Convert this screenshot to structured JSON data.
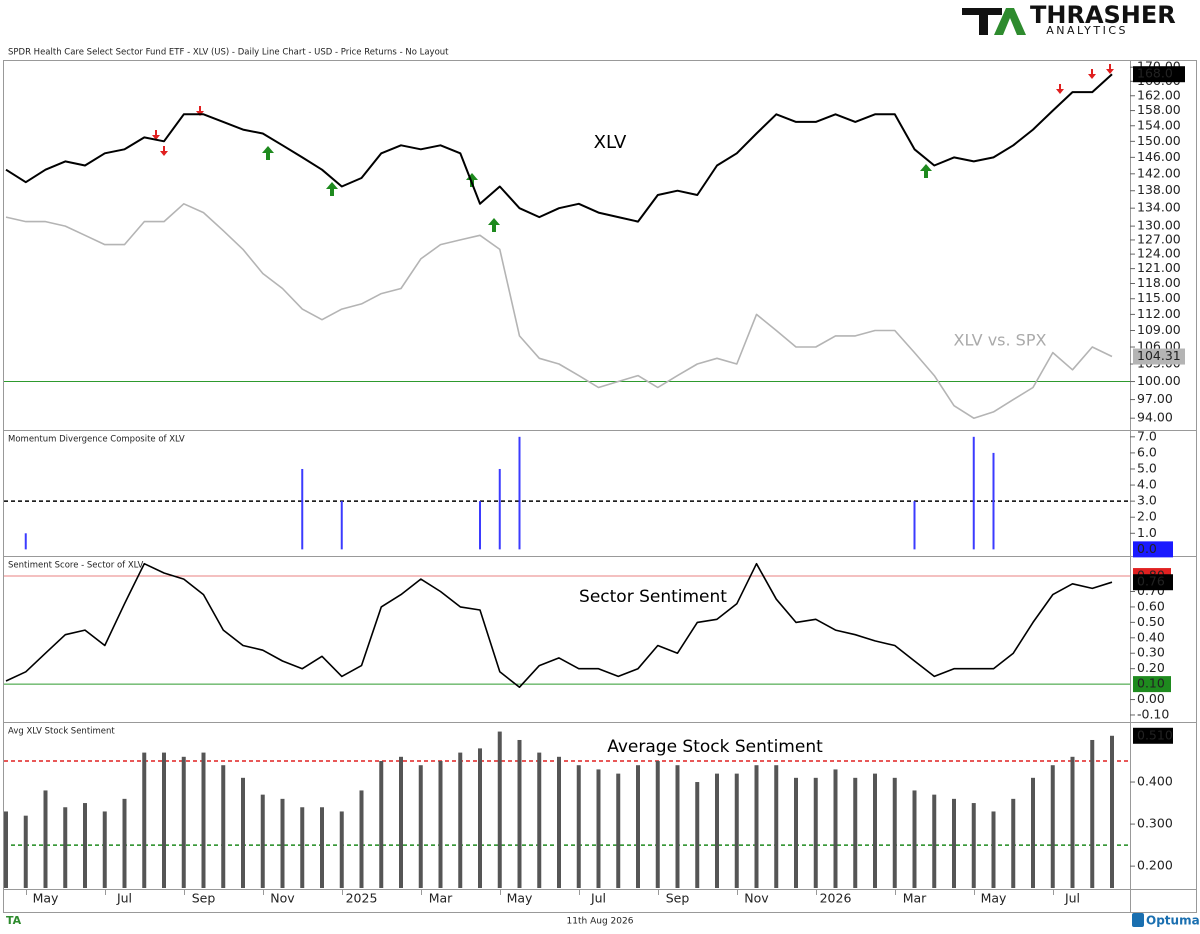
{
  "logo": {
    "name": "THRASHER",
    "tagline": "ANALYTICS"
  },
  "header": "SPDR Health Care Select Sector Fund ETF - XLV (US) - Daily Line Chart - USD - Price Returns - No Layout",
  "footer": {
    "date": "11th Aug 2026",
    "brand": "Optuma"
  },
  "x_axis": {
    "categories": [
      null,
      null,
      "May",
      null,
      null,
      null,
      "Jul",
      null,
      null,
      null,
      "Sep",
      null,
      null,
      null,
      "Nov",
      null,
      null,
      null,
      "2025",
      null,
      null,
      null,
      "Mar",
      null,
      null,
      null,
      "May",
      null,
      null,
      null,
      "Jul",
      null,
      null,
      null,
      "Sep",
      null,
      null,
      null,
      "Nov",
      null,
      null,
      null,
      "2026",
      null,
      null,
      null,
      "Mar",
      null,
      null,
      null,
      "May",
      null,
      null,
      null,
      "Jul",
      null,
      null
    ]
  },
  "chart_data": [
    {
      "type": "line",
      "log": true,
      "ylim": [
        92.3,
        171.5
      ],
      "yticks": [
        {
          "value": 94,
          "label": "94.00"
        },
        {
          "value": 97,
          "label": "97.00"
        },
        {
          "value": 100,
          "label": "100.00"
        },
        {
          "value": 103,
          "label": "103.00"
        },
        {
          "value": 106,
          "label": "106.00"
        },
        {
          "value": 109,
          "label": "109.00"
        },
        {
          "value": 112,
          "label": "112.00"
        },
        {
          "value": 115,
          "label": "115.00"
        },
        {
          "value": 118,
          "label": "118.00"
        },
        {
          "value": 121,
          "label": "121.00"
        },
        {
          "value": 124,
          "label": "124.00"
        },
        {
          "value": 127,
          "label": "127.00"
        },
        {
          "value": 130,
          "label": "130.00"
        },
        {
          "value": 134,
          "label": "134.00"
        },
        {
          "value": 138,
          "label": "138.00"
        },
        {
          "value": 142,
          "label": "142.00"
        },
        {
          "value": 146,
          "label": "146.00"
        },
        {
          "value": 150,
          "label": "150.00"
        },
        {
          "value": 154,
          "label": "154.00"
        },
        {
          "value": 158,
          "label": "158.00"
        },
        {
          "value": 162,
          "label": "162.00"
        },
        {
          "value": 166,
          "label": "166.00"
        },
        {
          "value": 170,
          "label": "170.00"
        }
      ],
      "hlines": [
        {
          "value": 100,
          "color": "#2e9a2e"
        }
      ],
      "series": [
        {
          "name": "XLV",
          "color": "#000000",
          "box": "#000000",
          "box_text": "#ffffff",
          "values": [
            143,
            140,
            143,
            145,
            144,
            147,
            148,
            151,
            150,
            157,
            157,
            155,
            153,
            152,
            149,
            146,
            143,
            139,
            141,
            147,
            149,
            148,
            149,
            147,
            135,
            139,
            134,
            132,
            134,
            135,
            133,
            132,
            131,
            137,
            138,
            137,
            144,
            147,
            152,
            157,
            155,
            155,
            157,
            155,
            157,
            157,
            148,
            144,
            146,
            145,
            146,
            149,
            153,
            158,
            163,
            163,
            168
          ],
          "value_labels": [
            null,
            null,
            null,
            null,
            null,
            null,
            null,
            null,
            null,
            null,
            null,
            null,
            null,
            null,
            null,
            null,
            null,
            null,
            null,
            null,
            null,
            null,
            null,
            null,
            null,
            null,
            null,
            null,
            null,
            null,
            null,
            null,
            null,
            null,
            null,
            null,
            null,
            null,
            null,
            null,
            null,
            null,
            null,
            null,
            null,
            null,
            null,
            null,
            null,
            null,
            null,
            null,
            null,
            null,
            null,
            null,
            "168.0"
          ]
        },
        {
          "name": "XLV vs. SPX",
          "color": "#b4b4b4",
          "box": "#b4b4b4",
          "box_text": "#000000",
          "values": [
            132,
            131,
            131,
            130,
            128,
            126,
            126,
            131,
            131,
            135,
            133,
            129,
            125,
            120,
            117,
            113,
            111,
            113,
            114,
            116,
            117,
            123,
            126,
            127,
            128,
            125,
            108,
            104,
            103,
            101,
            99,
            100,
            101,
            99,
            101,
            103,
            104,
            103,
            112,
            109,
            106,
            106,
            108,
            108,
            109,
            109,
            105,
            101,
            96,
            94,
            95,
            97,
            99,
            105,
            102,
            106,
            104.31
          ]
        }
      ]
    },
    {
      "type": "bar",
      "title": "Momentum Divergence Composite of XLV",
      "ylim": [
        -0.35,
        7.3
      ],
      "yticks": [
        {
          "value": 1,
          "label": "1.0"
        },
        {
          "value": 2,
          "label": "2.0"
        },
        {
          "value": 3,
          "label": "3.0"
        },
        {
          "value": 4,
          "label": "4.0"
        },
        {
          "value": 5,
          "label": "5.0"
        },
        {
          "value": 6,
          "label": "6.0"
        },
        {
          "value": 7,
          "label": "7.0"
        }
      ],
      "hlines": [
        {
          "value": 3,
          "color": "#000000",
          "dashed": true
        }
      ],
      "series": [
        {
          "color": "#3b3bff",
          "box": "#1a1aff",
          "box_text": "#ffffff",
          "values": [
            0,
            1,
            0,
            0,
            0,
            0,
            0,
            0,
            0,
            0,
            0,
            0,
            0,
            0,
            0,
            5,
            0,
            3,
            0,
            0,
            0,
            0,
            0,
            0,
            3,
            5,
            7,
            0,
            0,
            0,
            0,
            0,
            0,
            0,
            0,
            0,
            0,
            0,
            0,
            0,
            0,
            0,
            0,
            0,
            0,
            0,
            3,
            0,
            0,
            7,
            6,
            0,
            0,
            0,
            0,
            0,
            0
          ],
          "value_labels": [
            null,
            null,
            null,
            null,
            null,
            null,
            null,
            null,
            null,
            null,
            null,
            null,
            null,
            null,
            null,
            null,
            null,
            null,
            null,
            null,
            null,
            null,
            null,
            null,
            null,
            null,
            null,
            null,
            null,
            null,
            null,
            null,
            null,
            null,
            null,
            null,
            null,
            null,
            null,
            null,
            null,
            null,
            null,
            null,
            null,
            null,
            null,
            null,
            null,
            null,
            null,
            null,
            null,
            null,
            null,
            null,
            "0.0"
          ]
        }
      ]
    },
    {
      "type": "line",
      "title": "Sentiment Score - Sector of XLV",
      "ylim": [
        -0.139,
        0.917
      ],
      "yticks": [
        {
          "value": -0.1,
          "label": "-0.10"
        },
        {
          "value": 0,
          "label": "0.00"
        },
        {
          "value": 0.2,
          "label": "0.20"
        },
        {
          "value": 0.3,
          "label": "0.30"
        },
        {
          "value": 0.4,
          "label": "0.40"
        },
        {
          "value": 0.5,
          "label": "0.50"
        },
        {
          "value": 0.6,
          "label": "0.60"
        },
        {
          "value": 0.7,
          "label": "0.70"
        }
      ],
      "hlines": [
        {
          "value": 0.8,
          "label": "0.80",
          "color": "#e02020",
          "line": "#e88080"
        },
        {
          "value": 0.1,
          "label": "0.10",
          "color": "#1e8a1e",
          "line": "#2e9a2e"
        }
      ],
      "series": [
        {
          "name": "Sector Sentiment",
          "color": "#000000",
          "box": "#000000",
          "box_text": "#ffffff",
          "values": [
            0.12,
            0.18,
            0.3,
            0.42,
            0.45,
            0.35,
            0.62,
            0.88,
            0.82,
            0.78,
            0.68,
            0.45,
            0.35,
            0.32,
            0.25,
            0.2,
            0.28,
            0.15,
            0.22,
            0.6,
            0.68,
            0.78,
            0.7,
            0.6,
            0.58,
            0.18,
            0.08,
            0.22,
            0.27,
            0.2,
            0.2,
            0.15,
            0.2,
            0.35,
            0.3,
            0.5,
            0.52,
            0.62,
            0.88,
            0.65,
            0.5,
            0.52,
            0.45,
            0.42,
            0.38,
            0.35,
            0.25,
            0.15,
            0.2,
            0.2,
            0.2,
            0.3,
            0.5,
            0.68,
            0.75,
            0.72,
            0.76
          ]
        }
      ]
    },
    {
      "type": "bar",
      "title": "Avg XLV Stock Sentiment",
      "ylim": [
        0.148,
        0.538
      ],
      "yticks": [
        {
          "value": 0.2,
          "label": "0.200"
        },
        {
          "value": 0.3,
          "label": "0.300"
        },
        {
          "value": 0.4,
          "label": "0.400"
        }
      ],
      "hlines": [
        {
          "value": 0.45,
          "color": "#e02020",
          "dashed": true
        },
        {
          "value": 0.25,
          "color": "#1e8a1e",
          "dashed": true
        }
      ],
      "series": [
        {
          "name": "Average Stock Sentiment",
          "color": "#555555",
          "box": "#000000",
          "box_text": "#ffffff",
          "values": [
            0.33,
            0.32,
            0.38,
            0.34,
            0.35,
            0.33,
            0.36,
            0.47,
            0.47,
            0.46,
            0.47,
            0.44,
            0.41,
            0.37,
            0.36,
            0.34,
            0.34,
            0.33,
            0.38,
            0.45,
            0.46,
            0.44,
            0.45,
            0.47,
            0.48,
            0.52,
            0.5,
            0.47,
            0.46,
            0.44,
            0.43,
            0.42,
            0.44,
            0.45,
            0.44,
            0.4,
            0.42,
            0.42,
            0.44,
            0.44,
            0.41,
            0.41,
            0.43,
            0.41,
            0.42,
            0.41,
            0.38,
            0.37,
            0.36,
            0.35,
            0.33,
            0.36,
            0.41,
            0.44,
            0.46,
            0.5,
            0.51
          ],
          "value_labels": [
            null,
            null,
            null,
            null,
            null,
            null,
            null,
            null,
            null,
            null,
            null,
            null,
            null,
            null,
            null,
            null,
            null,
            null,
            null,
            null,
            null,
            null,
            null,
            null,
            null,
            null,
            null,
            null,
            null,
            null,
            null,
            null,
            null,
            null,
            null,
            null,
            null,
            null,
            null,
            null,
            null,
            null,
            null,
            null,
            null,
            null,
            null,
            null,
            null,
            null,
            null,
            null,
            null,
            null,
            null,
            null,
            "0.510"
          ]
        }
      ]
    }
  ]
}
